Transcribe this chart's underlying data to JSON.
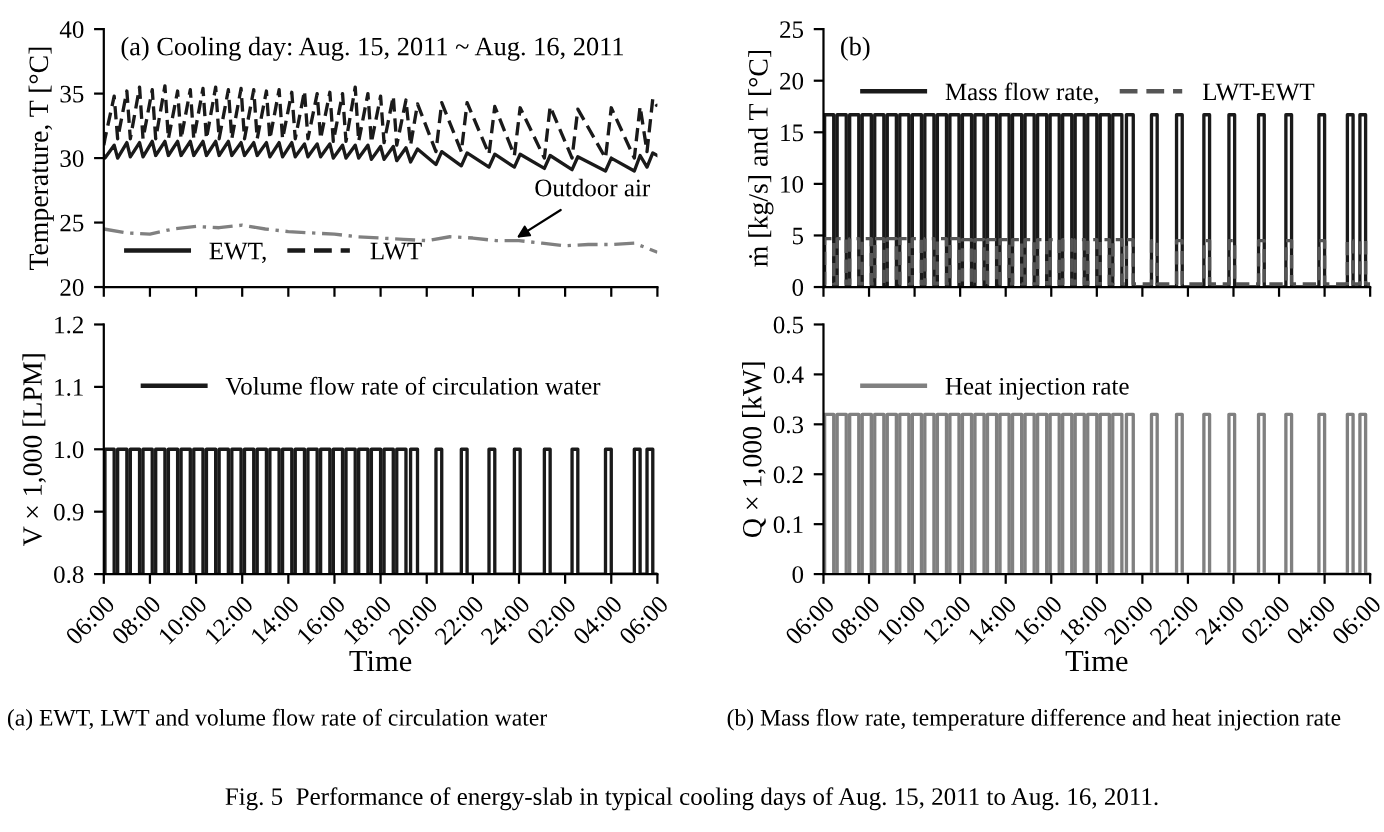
{
  "chart_data": [
    {
      "type": "line",
      "title": "(a) Cooling day: Aug. 15, 2011 ~ Aug. 16, 2011",
      "ylabel": "Temperature, T [°C]",
      "legend": "bottom left",
      "tick_labels": "y",
      "x": [
        "2011-08-15T06:00",
        "2011-08-15T06:03",
        "2011-08-15T06:27",
        "2011-08-15T06:36",
        "2011-08-15T07:00",
        "2011-08-15T07:09",
        "2011-08-15T07:33",
        "2011-08-15T07:42",
        "2011-08-15T08:06",
        "2011-08-15T08:15",
        "2011-08-15T08:39",
        "2011-08-15T08:48",
        "2011-08-15T09:12",
        "2011-08-15T09:21",
        "2011-08-15T09:45",
        "2011-08-15T09:54",
        "2011-08-15T10:18",
        "2011-08-15T10:27",
        "2011-08-15T10:51",
        "2011-08-15T11:00",
        "2011-08-15T11:24",
        "2011-08-15T11:33",
        "2011-08-15T11:57",
        "2011-08-15T12:06",
        "2011-08-15T12:30",
        "2011-08-15T12:39",
        "2011-08-15T13:03",
        "2011-08-15T13:12",
        "2011-08-15T13:36",
        "2011-08-15T13:45",
        "2011-08-15T14:09",
        "2011-08-15T14:18",
        "2011-08-15T14:42",
        "2011-08-15T14:51",
        "2011-08-15T15:15",
        "2011-08-15T15:24",
        "2011-08-15T15:48",
        "2011-08-15T15:57",
        "2011-08-15T16:21",
        "2011-08-15T16:30",
        "2011-08-15T16:54",
        "2011-08-15T17:03",
        "2011-08-15T17:27",
        "2011-08-15T17:36",
        "2011-08-15T18:00",
        "2011-08-15T18:09",
        "2011-08-15T18:33",
        "2011-08-15T18:42",
        "2011-08-15T19:06",
        "2011-08-15T19:18",
        "2011-08-15T19:36",
        "2011-08-15T20:24",
        "2011-08-15T20:39",
        "2011-08-15T21:30",
        "2011-08-15T21:45",
        "2011-08-15T22:42",
        "2011-08-15T22:57",
        "2011-08-15T23:48",
        "2011-08-16T00:03",
        "2011-08-16T01:06",
        "2011-08-16T01:21",
        "2011-08-16T02:18",
        "2011-08-16T02:33",
        "2011-08-16T03:45",
        "2011-08-16T04:00",
        "2011-08-16T05:00",
        "2011-08-16T05:15",
        "2011-08-16T05:33",
        "2011-08-16T05:48",
        "2011-08-16T06:00"
      ],
      "series": [
        {
          "name": "EWT,",
          "type": "line",
          "line_style": "solid",
          "color": "#1a1a1a",
          "values": [
            30.2,
            30.0,
            31.0,
            30.0,
            31.2,
            30.1,
            31.2,
            30.1,
            31.3,
            30.2,
            31.3,
            30.2,
            31.3,
            30.2,
            31.3,
            30.2,
            31.3,
            30.2,
            31.3,
            30.2,
            31.3,
            30.2,
            31.2,
            30.2,
            31.2,
            30.2,
            31.2,
            30.1,
            31.2,
            30.1,
            31.2,
            30.1,
            31.1,
            30.1,
            31.1,
            30.1,
            31.1,
            30.0,
            31.0,
            30.0,
            31.0,
            30.0,
            31.0,
            29.9,
            30.9,
            29.9,
            30.9,
            29.8,
            30.8,
            29.7,
            30.7,
            29.5,
            30.5,
            29.4,
            30.4,
            29.3,
            30.3,
            29.3,
            30.3,
            29.2,
            30.2,
            29.1,
            30.1,
            29.0,
            30.0,
            29.0,
            30.2,
            29.3,
            30.4,
            30.2
          ]
        },
        {
          "name": "LWT",
          "type": "line",
          "line_style": "dashed",
          "color": "#1a1a1a",
          "values": [
            31.0,
            31.5,
            34.8,
            31.5,
            35.2,
            31.5,
            35.5,
            31.5,
            35.3,
            31.5,
            35.6,
            31.5,
            35.2,
            31.5,
            35.3,
            31.5,
            35.4,
            31.5,
            35.5,
            31.5,
            35.3,
            31.5,
            35.4,
            31.5,
            35.3,
            31.5,
            35.2,
            31.5,
            35.3,
            31.5,
            35.1,
            31.5,
            35.2,
            31.5,
            35.0,
            31.5,
            35.1,
            31.3,
            35.0,
            31.3,
            35.5,
            31.3,
            35.0,
            31.2,
            34.8,
            31.2,
            34.8,
            31.0,
            34.5,
            31.0,
            34.2,
            30.5,
            34.3,
            30.5,
            34.3,
            30.3,
            34.0,
            30.2,
            33.9,
            30.0,
            34.0,
            30.0,
            33.8,
            30.0,
            33.9,
            30.0,
            34.0,
            30.5,
            34.6,
            34.0
          ]
        },
        {
          "type": "line",
          "line_style": "dashdot",
          "color": "#808080",
          "x": [
            "2011-08-15T06:00",
            "2011-08-15T07:00",
            "2011-08-15T08:00",
            "2011-08-15T09:00",
            "2011-08-15T10:00",
            "2011-08-15T11:00",
            "2011-08-15T12:00",
            "2011-08-15T13:00",
            "2011-08-15T14:00",
            "2011-08-15T15:00",
            "2011-08-15T16:00",
            "2011-08-15T17:00",
            "2011-08-15T18:00",
            "2011-08-15T19:00",
            "2011-08-15T20:00",
            "2011-08-15T21:00",
            "2011-08-15T22:00",
            "2011-08-15T23:00",
            "2011-08-16T00:00",
            "2011-08-16T01:00",
            "2011-08-16T02:00",
            "2011-08-16T03:00",
            "2011-08-16T04:00",
            "2011-08-16T05:00",
            "2011-08-16T06:00"
          ],
          "values": [
            24.5,
            24.2,
            24.1,
            24.5,
            24.7,
            24.6,
            24.8,
            24.5,
            24.3,
            24.2,
            24.1,
            23.9,
            23.8,
            23.7,
            23.6,
            23.9,
            23.8,
            23.6,
            23.6,
            23.4,
            23.2,
            23.3,
            23.3,
            23.4,
            22.7
          ]
        }
      ],
      "annotations": [
        {
          "text": "Outdoor air",
          "x": "2011-08-15T23:42",
          "y": 23.6
        }
      ],
      "xlim": [
        "2011-08-15T06:00",
        "2011-08-16T06:00"
      ],
      "xticks": [
        {
          "value": "2011-08-15T06:00",
          "label": null
        },
        {
          "value": "2011-08-15T08:00",
          "label": null
        },
        {
          "value": "2011-08-15T10:00",
          "label": null
        },
        {
          "value": "2011-08-15T12:00",
          "label": null
        },
        {
          "value": "2011-08-15T14:00",
          "label": null
        },
        {
          "value": "2011-08-15T16:00",
          "label": null
        },
        {
          "value": "2011-08-15T18:00",
          "label": null
        },
        {
          "value": "2011-08-15T20:00",
          "label": null
        },
        {
          "value": "2011-08-15T22:00",
          "label": null
        },
        {
          "value": "2011-08-16T00:00",
          "label": null
        },
        {
          "value": "2011-08-16T02:00",
          "label": null
        },
        {
          "value": "2011-08-16T04:00",
          "label": null
        },
        {
          "value": "2011-08-16T06:00",
          "label": null
        }
      ],
      "ylim": [
        20,
        40
      ],
      "yticks": [
        20,
        25,
        30,
        35,
        40
      ]
    },
    {
      "type": "step",
      "title": "(b)",
      "ylabel": "ṁ [kg/s] and T [°C]",
      "legend": "top left",
      "tick_labels": "y",
      "x": [
        "2011-08-15T06:00",
        "2011-08-15T06:03",
        "2011-08-15T06:27",
        "2011-08-15T06:36",
        "2011-08-15T07:00",
        "2011-08-15T07:09",
        "2011-08-15T07:33",
        "2011-08-15T07:42",
        "2011-08-15T08:06",
        "2011-08-15T08:15",
        "2011-08-15T08:39",
        "2011-08-15T08:48",
        "2011-08-15T09:12",
        "2011-08-15T09:21",
        "2011-08-15T09:45",
        "2011-08-15T09:54",
        "2011-08-15T10:18",
        "2011-08-15T10:27",
        "2011-08-15T10:51",
        "2011-08-15T11:00",
        "2011-08-15T11:24",
        "2011-08-15T11:33",
        "2011-08-15T11:57",
        "2011-08-15T12:06",
        "2011-08-15T12:30",
        "2011-08-15T12:39",
        "2011-08-15T13:03",
        "2011-08-15T13:12",
        "2011-08-15T13:36",
        "2011-08-15T13:45",
        "2011-08-15T14:09",
        "2011-08-15T14:18",
        "2011-08-15T14:42",
        "2011-08-15T14:51",
        "2011-08-15T15:15",
        "2011-08-15T15:24",
        "2011-08-15T15:48",
        "2011-08-15T15:57",
        "2011-08-15T16:21",
        "2011-08-15T16:30",
        "2011-08-15T16:54",
        "2011-08-15T17:03",
        "2011-08-15T17:27",
        "2011-08-15T17:36",
        "2011-08-15T18:00",
        "2011-08-15T18:09",
        "2011-08-15T18:33",
        "2011-08-15T18:42",
        "2011-08-15T19:06",
        "2011-08-15T19:18",
        "2011-08-15T19:36",
        "2011-08-15T20:24",
        "2011-08-15T20:39",
        "2011-08-15T21:30",
        "2011-08-15T21:45",
        "2011-08-15T22:42",
        "2011-08-15T22:57",
        "2011-08-15T23:48",
        "2011-08-16T00:03",
        "2011-08-16T01:06",
        "2011-08-16T01:21",
        "2011-08-16T02:18",
        "2011-08-16T02:33",
        "2011-08-16T03:45",
        "2011-08-16T04:00",
        "2011-08-16T05:00",
        "2011-08-16T05:15",
        "2011-08-16T05:33",
        "2011-08-16T05:48",
        "2011-08-16T06:00"
      ],
      "series": [
        {
          "name": "Mass flow rate,",
          "line_style": "solid",
          "color": "#1a1a1a",
          "values": [
            0,
            16.7,
            0,
            16.7,
            0,
            16.7,
            0,
            16.7,
            0,
            16.7,
            0,
            16.7,
            0,
            16.7,
            0,
            16.7,
            0,
            16.7,
            0,
            16.7,
            0,
            16.7,
            0,
            16.7,
            0,
            16.7,
            0,
            16.7,
            0,
            16.7,
            0,
            16.7,
            0,
            16.7,
            0,
            16.7,
            0,
            16.7,
            0,
            16.7,
            0,
            16.7,
            0,
            16.7,
            0,
            16.7,
            0,
            16.7,
            0,
            16.7,
            0,
            16.7,
            0,
            16.7,
            0,
            16.7,
            0,
            16.7,
            0,
            16.7,
            0,
            16.7,
            0,
            16.7,
            0,
            16.7,
            0,
            16.7,
            0,
            0
          ]
        },
        {
          "name": "LWT-EWT",
          "line_style": "dashed",
          "color": "#555555",
          "values": [
            0.3,
            4.7,
            0.3,
            4.7,
            0.3,
            4.7,
            0.3,
            4.7,
            0.3,
            4.7,
            0.3,
            4.7,
            0.3,
            4.7,
            0.3,
            4.7,
            0.3,
            4.7,
            0.3,
            4.7,
            0.3,
            4.7,
            0.3,
            4.6,
            0.3,
            4.6,
            0.3,
            4.6,
            0.3,
            4.6,
            0.3,
            4.6,
            0.3,
            4.6,
            0.3,
            4.6,
            0.3,
            4.6,
            0.3,
            4.6,
            0.3,
            4.6,
            0.3,
            4.6,
            0.3,
            4.6,
            0.3,
            4.6,
            0.3,
            4.6,
            0.3,
            4.5,
            0.3,
            4.5,
            0.3,
            4.5,
            0.3,
            4.5,
            0.3,
            4.5,
            0.3,
            4.5,
            0.3,
            4.5,
            0.3,
            4.5,
            0.3,
            4.5,
            0.3,
            0.3
          ]
        }
      ],
      "xlim": [
        "2011-08-15T06:00",
        "2011-08-16T06:00"
      ],
      "xticks": [
        {
          "value": "2011-08-15T06:00",
          "label": null
        },
        {
          "value": "2011-08-15T08:00",
          "label": null
        },
        {
          "value": "2011-08-15T10:00",
          "label": null
        },
        {
          "value": "2011-08-15T12:00",
          "label": null
        },
        {
          "value": "2011-08-15T14:00",
          "label": null
        },
        {
          "value": "2011-08-15T16:00",
          "label": null
        },
        {
          "value": "2011-08-15T18:00",
          "label": null
        },
        {
          "value": "2011-08-15T20:00",
          "label": null
        },
        {
          "value": "2011-08-15T22:00",
          "label": null
        },
        {
          "value": "2011-08-16T00:00",
          "label": null
        },
        {
          "value": "2011-08-16T02:00",
          "label": null
        },
        {
          "value": "2011-08-16T04:00",
          "label": null
        },
        {
          "value": "2011-08-16T06:00",
          "label": null
        }
      ],
      "ylim": [
        0,
        25
      ],
      "yticks": [
        0,
        5,
        10,
        15,
        20,
        25
      ]
    },
    {
      "type": "step",
      "xlabel": "Time",
      "ylabel": "V × 1,000 [LPM]",
      "legend": "top left",
      "x": [
        "2011-08-15T06:00",
        "2011-08-15T06:03",
        "2011-08-15T06:27",
        "2011-08-15T06:36",
        "2011-08-15T07:00",
        "2011-08-15T07:09",
        "2011-08-15T07:33",
        "2011-08-15T07:42",
        "2011-08-15T08:06",
        "2011-08-15T08:15",
        "2011-08-15T08:39",
        "2011-08-15T08:48",
        "2011-08-15T09:12",
        "2011-08-15T09:21",
        "2011-08-15T09:45",
        "2011-08-15T09:54",
        "2011-08-15T10:18",
        "2011-08-15T10:27",
        "2011-08-15T10:51",
        "2011-08-15T11:00",
        "2011-08-15T11:24",
        "2011-08-15T11:33",
        "2011-08-15T11:57",
        "2011-08-15T12:06",
        "2011-08-15T12:30",
        "2011-08-15T12:39",
        "2011-08-15T13:03",
        "2011-08-15T13:12",
        "2011-08-15T13:36",
        "2011-08-15T13:45",
        "2011-08-15T14:09",
        "2011-08-15T14:18",
        "2011-08-15T14:42",
        "2011-08-15T14:51",
        "2011-08-15T15:15",
        "2011-08-15T15:24",
        "2011-08-15T15:48",
        "2011-08-15T15:57",
        "2011-08-15T16:21",
        "2011-08-15T16:30",
        "2011-08-15T16:54",
        "2011-08-15T17:03",
        "2011-08-15T17:27",
        "2011-08-15T17:36",
        "2011-08-15T18:00",
        "2011-08-15T18:09",
        "2011-08-15T18:33",
        "2011-08-15T18:42",
        "2011-08-15T19:06",
        "2011-08-15T19:18",
        "2011-08-15T19:36",
        "2011-08-15T20:24",
        "2011-08-15T20:39",
        "2011-08-15T21:30",
        "2011-08-15T21:45",
        "2011-08-15T22:42",
        "2011-08-15T22:57",
        "2011-08-15T23:48",
        "2011-08-16T00:03",
        "2011-08-16T01:06",
        "2011-08-16T01:21",
        "2011-08-16T02:18",
        "2011-08-16T02:33",
        "2011-08-16T03:45",
        "2011-08-16T04:00",
        "2011-08-16T05:00",
        "2011-08-16T05:15",
        "2011-08-16T05:33",
        "2011-08-16T05:48",
        "2011-08-16T06:00"
      ],
      "series": [
        {
          "name": "Volume flow rate of circulation water",
          "line_style": "solid",
          "color": "#1a1a1a",
          "values": [
            0.8,
            1.0,
            0.8,
            1.0,
            0.8,
            1.0,
            0.8,
            1.0,
            0.8,
            1.0,
            0.8,
            1.0,
            0.8,
            1.0,
            0.8,
            1.0,
            0.8,
            1.0,
            0.8,
            1.0,
            0.8,
            1.0,
            0.8,
            1.0,
            0.8,
            1.0,
            0.8,
            1.0,
            0.8,
            1.0,
            0.8,
            1.0,
            0.8,
            1.0,
            0.8,
            1.0,
            0.8,
            1.0,
            0.8,
            1.0,
            0.8,
            1.0,
            0.8,
            1.0,
            0.8,
            1.0,
            0.8,
            1.0,
            0.8,
            1.0,
            0.8,
            1.0,
            0.8,
            1.0,
            0.8,
            1.0,
            0.8,
            1.0,
            0.8,
            1.0,
            0.8,
            1.0,
            0.8,
            1.0,
            0.8,
            1.0,
            0.8,
            1.0,
            0.8,
            0.8
          ]
        }
      ],
      "annotations": [
        "(a) EWT, LWT and volume flow rate of circulation water",
        "Fig. 5  Performance of energy-slab in typical cooling days of Aug. 15, 2011 to Aug. 16, 2011."
      ],
      "xlim": [
        "2011-08-15T06:00",
        "2011-08-16T06:00"
      ],
      "xticks": [
        {
          "value": "2011-08-15T06:00",
          "label": "06:00"
        },
        {
          "value": "2011-08-15T08:00",
          "label": "08:00"
        },
        {
          "value": "2011-08-15T10:00",
          "label": "10:00"
        },
        {
          "value": "2011-08-15T12:00",
          "label": "12:00"
        },
        {
          "value": "2011-08-15T14:00",
          "label": "14:00"
        },
        {
          "value": "2011-08-15T16:00",
          "label": "16:00"
        },
        {
          "value": "2011-08-15T18:00",
          "label": "18:00"
        },
        {
          "value": "2011-08-15T20:00",
          "label": "20:00"
        },
        {
          "value": "2011-08-15T22:00",
          "label": "22:00"
        },
        {
          "value": "2011-08-16T00:00",
          "label": "24:00"
        },
        {
          "value": "2011-08-16T02:00",
          "label": "02:00"
        },
        {
          "value": "2011-08-16T04:00",
          "label": "04:00"
        },
        {
          "value": "2011-08-16T06:00",
          "label": "06:00"
        }
      ],
      "ylim": [
        0.8,
        1.2
      ],
      "yticks": [
        {
          "value": 0.8,
          "label": "0.8"
        },
        {
          "value": 0.9,
          "label": "0.9"
        },
        {
          "value": 1.0,
          "label": "1.0"
        },
        {
          "value": 1.1,
          "label": "1.1"
        },
        {
          "value": 1.2,
          "label": "1.2"
        }
      ]
    },
    {
      "type": "step",
      "xlabel": "Time",
      "ylabel": "Q × 1,000 [kW]",
      "legend": "top left",
      "x": [
        "2011-08-15T06:00",
        "2011-08-15T06:03",
        "2011-08-15T06:27",
        "2011-08-15T06:36",
        "2011-08-15T07:00",
        "2011-08-15T07:09",
        "2011-08-15T07:33",
        "2011-08-15T07:42",
        "2011-08-15T08:06",
        "2011-08-15T08:15",
        "2011-08-15T08:39",
        "2011-08-15T08:48",
        "2011-08-15T09:12",
        "2011-08-15T09:21",
        "2011-08-15T09:45",
        "2011-08-15T09:54",
        "2011-08-15T10:18",
        "2011-08-15T10:27",
        "2011-08-15T10:51",
        "2011-08-15T11:00",
        "2011-08-15T11:24",
        "2011-08-15T11:33",
        "2011-08-15T11:57",
        "2011-08-15T12:06",
        "2011-08-15T12:30",
        "2011-08-15T12:39",
        "2011-08-15T13:03",
        "2011-08-15T13:12",
        "2011-08-15T13:36",
        "2011-08-15T13:45",
        "2011-08-15T14:09",
        "2011-08-15T14:18",
        "2011-08-15T14:42",
        "2011-08-15T14:51",
        "2011-08-15T15:15",
        "2011-08-15T15:24",
        "2011-08-15T15:48",
        "2011-08-15T15:57",
        "2011-08-15T16:21",
        "2011-08-15T16:30",
        "2011-08-15T16:54",
        "2011-08-15T17:03",
        "2011-08-15T17:27",
        "2011-08-15T17:36",
        "2011-08-15T18:00",
        "2011-08-15T18:09",
        "2011-08-15T18:33",
        "2011-08-15T18:42",
        "2011-08-15T19:06",
        "2011-08-15T19:18",
        "2011-08-15T19:36",
        "2011-08-15T20:24",
        "2011-08-15T20:39",
        "2011-08-15T21:30",
        "2011-08-15T21:45",
        "2011-08-15T22:42",
        "2011-08-15T22:57",
        "2011-08-15T23:48",
        "2011-08-16T00:03",
        "2011-08-16T01:06",
        "2011-08-16T01:21",
        "2011-08-16T02:18",
        "2011-08-16T02:33",
        "2011-08-16T03:45",
        "2011-08-16T04:00",
        "2011-08-16T05:00",
        "2011-08-16T05:15",
        "2011-08-16T05:33",
        "2011-08-16T05:48",
        "2011-08-16T06:00"
      ],
      "series": [
        {
          "name": "Heat injection rate",
          "line_style": "solid",
          "color": "#808080",
          "values": [
            0,
            0.32,
            0,
            0.32,
            0,
            0.32,
            0,
            0.32,
            0,
            0.32,
            0,
            0.32,
            0,
            0.32,
            0,
            0.32,
            0,
            0.32,
            0,
            0.32,
            0,
            0.32,
            0,
            0.32,
            0,
            0.32,
            0,
            0.32,
            0,
            0.32,
            0,
            0.32,
            0,
            0.32,
            0,
            0.32,
            0,
            0.32,
            0,
            0.32,
            0,
            0.32,
            0,
            0.32,
            0,
            0.32,
            0,
            0.32,
            0,
            0.32,
            0,
            0.32,
            0,
            0.32,
            0,
            0.32,
            0,
            0.32,
            0,
            0.32,
            0,
            0.32,
            0,
            0.32,
            0,
            0.32,
            0,
            0.32,
            0,
            0
          ]
        }
      ],
      "annotations": [
        "(b) Mass flow rate, temperature difference and heat injection rate"
      ],
      "xlim": [
        "2011-08-15T06:00",
        "2011-08-16T06:00"
      ],
      "xticks": [
        {
          "value": "2011-08-15T06:00",
          "label": "06:00"
        },
        {
          "value": "2011-08-15T08:00",
          "label": "08:00"
        },
        {
          "value": "2011-08-15T10:00",
          "label": "10:00"
        },
        {
          "value": "2011-08-15T12:00",
          "label": "12:00"
        },
        {
          "value": "2011-08-15T14:00",
          "label": "14:00"
        },
        {
          "value": "2011-08-15T16:00",
          "label": "16:00"
        },
        {
          "value": "2011-08-15T18:00",
          "label": "18:00"
        },
        {
          "value": "2011-08-15T20:00",
          "label": "20:00"
        },
        {
          "value": "2011-08-15T22:00",
          "label": "22:00"
        },
        {
          "value": "2011-08-16T00:00",
          "label": "24:00"
        },
        {
          "value": "2011-08-16T02:00",
          "label": "02:00"
        },
        {
          "value": "2011-08-16T04:00",
          "label": "04:00"
        },
        {
          "value": "2011-08-16T06:00",
          "label": "06:00"
        }
      ],
      "ylim": [
        0,
        0.5
      ],
      "yticks": [
        0,
        0.1,
        0.2,
        0.3,
        0.4,
        0.5
      ]
    }
  ]
}
